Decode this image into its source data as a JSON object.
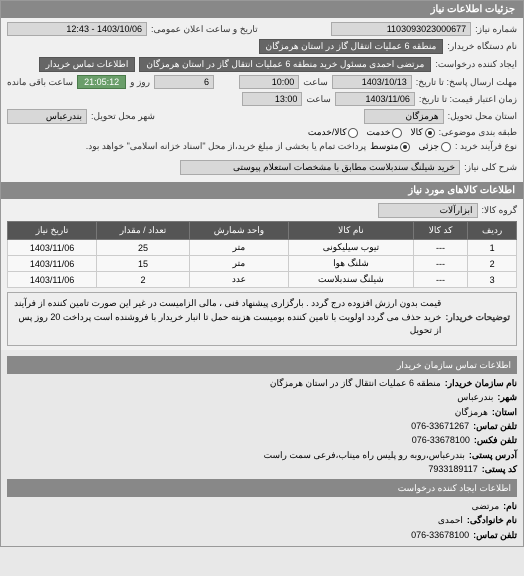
{
  "headers": {
    "main": "جزئیات اطلاعات نیاز",
    "goods": "اطلاعات کالاهای مورد نیاز",
    "org_contact": "اطلاعات تماس سازمان خریدار",
    "creator_contact": "اطلاعات ایجاد کننده درخواست"
  },
  "labels": {
    "request_no": "شماره نیاز:",
    "announce_dt": "تاریخ و ساعت اعلان عمومی:",
    "buyer_org": "نام دستگاه خریدار:",
    "requester": "ایجاد کننده درخواست:",
    "contact_info": "اطلاعات تماس خریدار",
    "reply_deadline": "مهلت ارسال پاسخ: تا تاریخ:",
    "hour": "ساعت",
    "day_and": "روز و",
    "remain": "ساعت باقی مانده",
    "price_valid_until": "زمان اعتبار قیمت: تا تاریخ:",
    "delivery_province": "استان محل تحویل:",
    "delivery_city": "شهر محل تحویل:",
    "packaging": "طبقه بندی موضوعی:",
    "process_type": "نوع فرآیند خرید :",
    "need_title": "شرح کلی نیاز:",
    "goods_group": "گروه کالا:",
    "notes_label": "توضیحات خریدار:",
    "radio_goods": "کالا",
    "radio_service": "خدمت",
    "radio_goods_service": "کالا/خدمت",
    "radio_low": "جزئی",
    "radio_mid": "متوسط",
    "process_note": "پرداخت تمام یا بخشی از مبلغ خرید،از محل \"اسناد خزانه اسلامی\" خواهد بود."
  },
  "values": {
    "request_no": "1103093023000677",
    "announce_dt": "1403/10/06 - 12:43",
    "buyer_org": "منطقه 6 عملیات انتقال گاز در استان هرمزگان",
    "requester": "مرتضی احمدی مسئول خرید منطقه 6 عملیات انتقال گاز در استان هرمزگان",
    "reply_date": "1403/10/13",
    "reply_time": "10:00",
    "remain_days": "6",
    "remain_time": "21:05:12",
    "price_valid_date": "1403/11/06",
    "price_valid_time": "13:00",
    "province": "هرمزگان",
    "city": "بندرعباس",
    "need_title": "خرید شیلنگ سندبلاست مطابق با مشخصات استعلام پیوستی",
    "goods_group": "ابزارآلات",
    "notes": "قیمت بدون ارزش افزوده درج گردد . بارگزاری پیشنهاد فنی ، مالی الزامیست در غیر این صورت تامین کننده از فرآیند خرید حذف می گردد اولویت با تامین کننده بومیست هزینه حمل تا انبار خریدار با فروشنده است پرداخت 20 روز پس از تحویل"
  },
  "table": {
    "cols": [
      "ردیف",
      "کد کالا",
      "نام کالا",
      "واحد شمارش",
      "تعداد / مقدار",
      "تاریخ نیاز"
    ],
    "rows": [
      [
        "1",
        "---",
        "تیوب سیلیکونی",
        "متر",
        "25",
        "1403/11/06"
      ],
      [
        "2",
        "---",
        "شلنگ هوا",
        "متر",
        "15",
        "1403/11/06"
      ],
      [
        "3",
        "---",
        "شیلنگ سندبلاست",
        "عدد",
        "2",
        "1403/11/06"
      ]
    ]
  },
  "contact_org": {
    "org_name_label": "نام سازمان خریدار:",
    "org_name": "منطقه 6 عملیات انتقال گاز در استان هرمزگان",
    "city_label": "شهر:",
    "city": "بندرعباس",
    "prov_label": "استان:",
    "prov": "هرمزگان",
    "phone_label": "تلفن تماس:",
    "phone": "076-33671267",
    "fax_label": "تلفن فکس:",
    "fax": "076-33678100",
    "addr_label": "آدرس پستی:",
    "addr": "بندرعباس،روبه رو پلیس راه میناب،فرعی سمت راست",
    "zip_label": "کد پستی:",
    "zip": "7933189117"
  },
  "contact_creator": {
    "name_label": "نام:",
    "name": "مرتضی",
    "lname_label": "نام خانوادگی:",
    "lname": "احمدی",
    "phone_label": "تلفن تماس:",
    "phone": "076-33678100"
  }
}
